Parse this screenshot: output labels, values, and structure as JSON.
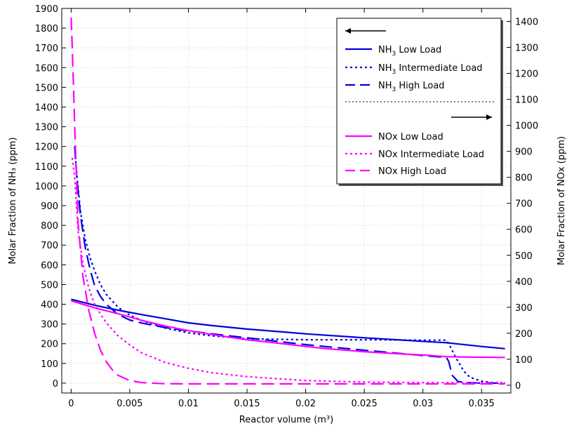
{
  "chart_data": {
    "type": "line",
    "xlabel": "Reactor volume (m³)",
    "ylabel_left": "Molar Fraction of NH₃ (ppm)",
    "ylabel_right": "Molar Fraction of NOx (ppm)",
    "xlim": [
      -0.0008,
      0.0375
    ],
    "ylim_left": [
      -50,
      1900
    ],
    "ylim_right": [
      -30,
      1450
    ],
    "x_ticks": [
      0,
      0.005,
      0.01,
      0.015,
      0.02,
      0.025,
      0.03,
      0.035
    ],
    "x_tick_labels": [
      "0",
      "0.005",
      "0.01",
      "0.015",
      "0.02",
      "0.025",
      "0.03",
      "0.035"
    ],
    "y_left_ticks": [
      0,
      100,
      200,
      300,
      400,
      500,
      600,
      700,
      800,
      900,
      1000,
      1100,
      1200,
      1300,
      1400,
      1500,
      1600,
      1700,
      1800,
      1900
    ],
    "y_right_ticks": [
      0,
      100,
      200,
      300,
      400,
      500,
      600,
      700,
      800,
      900,
      1000,
      1100,
      1200,
      1300,
      1400
    ],
    "grid": true,
    "legend_position": "top-right",
    "legend": {
      "left_axis_arrow": "←",
      "right_axis_arrow": "→",
      "entries": [
        {
          "name": "NH₃ Low Load",
          "color": "#0000dd",
          "dash": "solid"
        },
        {
          "name": "NH₃ Intermediate Load",
          "color": "#0000dd",
          "dash": "dot"
        },
        {
          "name": "NH₃ High Load",
          "color": "#0000dd",
          "dash": "long-dash"
        },
        {
          "name": "NOx Low Load",
          "color": "#ff00ff",
          "dash": "solid"
        },
        {
          "name": "NOx Intermediate Load",
          "color": "#ff00ff",
          "dash": "dot"
        },
        {
          "name": "NOx High Load",
          "color": "#ff00ff",
          "dash": "long-dash"
        }
      ]
    },
    "series": [
      {
        "name": "NH₃ Low Load",
        "axis": "left",
        "color": "#0000dd",
        "dash": "solid",
        "x": [
          0,
          0.002,
          0.004,
          0.006,
          0.008,
          0.01,
          0.012,
          0.015,
          0.018,
          0.02,
          0.025,
          0.03,
          0.032,
          0.035,
          0.037
        ],
        "y": [
          425,
          395,
          370,
          348,
          327,
          306,
          292,
          274,
          260,
          250,
          230,
          212,
          205,
          186,
          175
        ]
      },
      {
        "name": "NH₃ Intermediate Load",
        "axis": "left",
        "color": "#0000dd",
        "dash": "dot",
        "x": [
          0.0003,
          0.0005,
          0.0008,
          0.0012,
          0.0016,
          0.002,
          0.0025,
          0.003,
          0.004,
          0.005,
          0.006,
          0.008,
          0.01,
          0.012,
          0.015,
          0.02,
          0.025,
          0.03,
          0.032,
          0.0322,
          0.0328,
          0.0335,
          0.034,
          0.035,
          0.036,
          0.037
        ],
        "y": [
          1200,
          1050,
          870,
          730,
          640,
          570,
          500,
          450,
          385,
          345,
          318,
          280,
          255,
          240,
          225,
          220,
          220,
          218,
          218,
          200,
          130,
          60,
          30,
          10,
          3,
          0
        ]
      },
      {
        "name": "NH₃ High Load",
        "axis": "left",
        "color": "#0000dd",
        "dash": "long-dash",
        "x": [
          0.0003,
          0.0005,
          0.0008,
          0.0012,
          0.0016,
          0.002,
          0.0025,
          0.003,
          0.004,
          0.005,
          0.006,
          0.008,
          0.01,
          0.012,
          0.015,
          0.02,
          0.025,
          0.03,
          0.032,
          0.0322,
          0.0325,
          0.033,
          0.034,
          0.035,
          0.037
        ],
        "y": [
          1200,
          1030,
          850,
          690,
          580,
          495,
          440,
          400,
          348,
          320,
          305,
          282,
          265,
          250,
          230,
          195,
          167,
          140,
          130,
          110,
          40,
          8,
          2,
          0,
          0
        ]
      },
      {
        "name": "NOx Low Load",
        "axis": "right",
        "color": "#ff00ff",
        "dash": "solid",
        "x": [
          0,
          0.002,
          0.004,
          0.006,
          0.008,
          0.01,
          0.012,
          0.015,
          0.018,
          0.02,
          0.022,
          0.025,
          0.028,
          0.03,
          0.032,
          0.034,
          0.037
        ],
        "y": [
          325,
          298,
          275,
          250,
          228,
          210,
          195,
          175,
          160,
          149,
          140,
          129,
          121,
          116,
          110,
          108,
          107
        ]
      },
      {
        "name": "NOx Intermediate Load",
        "axis": "right",
        "color": "#ff00ff",
        "dash": "dot",
        "x": [
          0.0001,
          0.0003,
          0.0006,
          0.001,
          0.0015,
          0.002,
          0.003,
          0.004,
          0.005,
          0.006,
          0.008,
          0.01,
          0.012,
          0.015,
          0.02,
          0.025,
          0.03,
          0.035,
          0.037
        ],
        "y": [
          875,
          800,
          590,
          470,
          375,
          310,
          240,
          190,
          155,
          125,
          88,
          65,
          48,
          33,
          18,
          12,
          10,
          10,
          10
        ]
      },
      {
        "name": "NOx High Load",
        "axis": "right",
        "color": "#ff00ff",
        "dash": "long-dash",
        "x": [
          0,
          0.0001,
          0.0003,
          0.0006,
          0.001,
          0.0015,
          0.002,
          0.0025,
          0.003,
          0.0035,
          0.004,
          0.005,
          0.006,
          0.008,
          0.01,
          0.015,
          0.02,
          0.03,
          0.037
        ],
        "y": [
          1415,
          1300,
          1000,
          620,
          420,
          290,
          200,
          135,
          90,
          60,
          38,
          18,
          10,
          6,
          5,
          5,
          5,
          5,
          5
        ]
      }
    ]
  }
}
